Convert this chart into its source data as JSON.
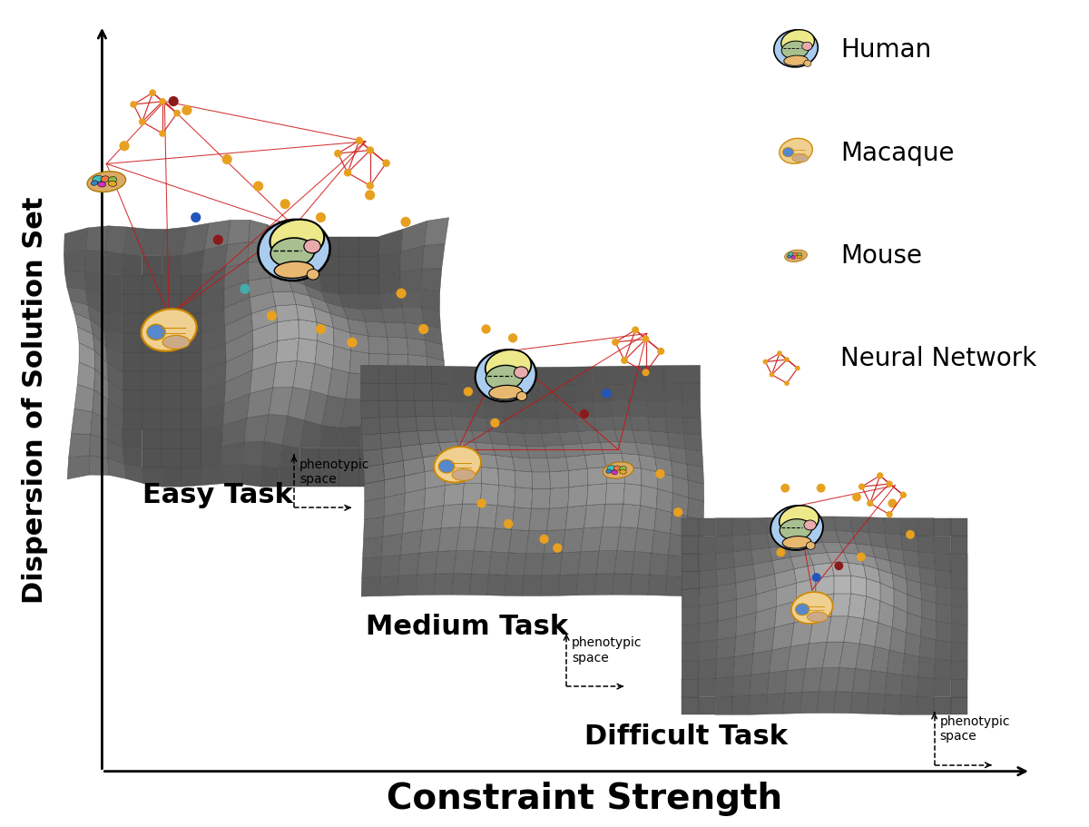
{
  "title": "",
  "xlabel": "Constraint Strength",
  "ylabel": "Dispersion of Solution Set",
  "xlabel_fontsize": 28,
  "ylabel_fontsize": 22,
  "background_color": "#ffffff",
  "task_labels": [
    "Easy Task",
    "Medium Task",
    "Difficult Task"
  ],
  "task_label_fontsize": 22,
  "legend_labels": [
    "Human",
    "Macaque",
    "Mouse",
    "Neural Network"
  ],
  "legend_fontsize": 20,
  "phenotypic_fontsize": 10,
  "nn_node_color": "#E8A020",
  "nn_edge_color": "#CC2020",
  "scatter_orange": "#E8A020",
  "scatter_red": "#8B1A1A",
  "scatter_blue": "#2255BB",
  "scatter_teal": "#44AAAA",
  "mesh_edge_color": "#444444",
  "mesh_edge_lw": 0.3
}
